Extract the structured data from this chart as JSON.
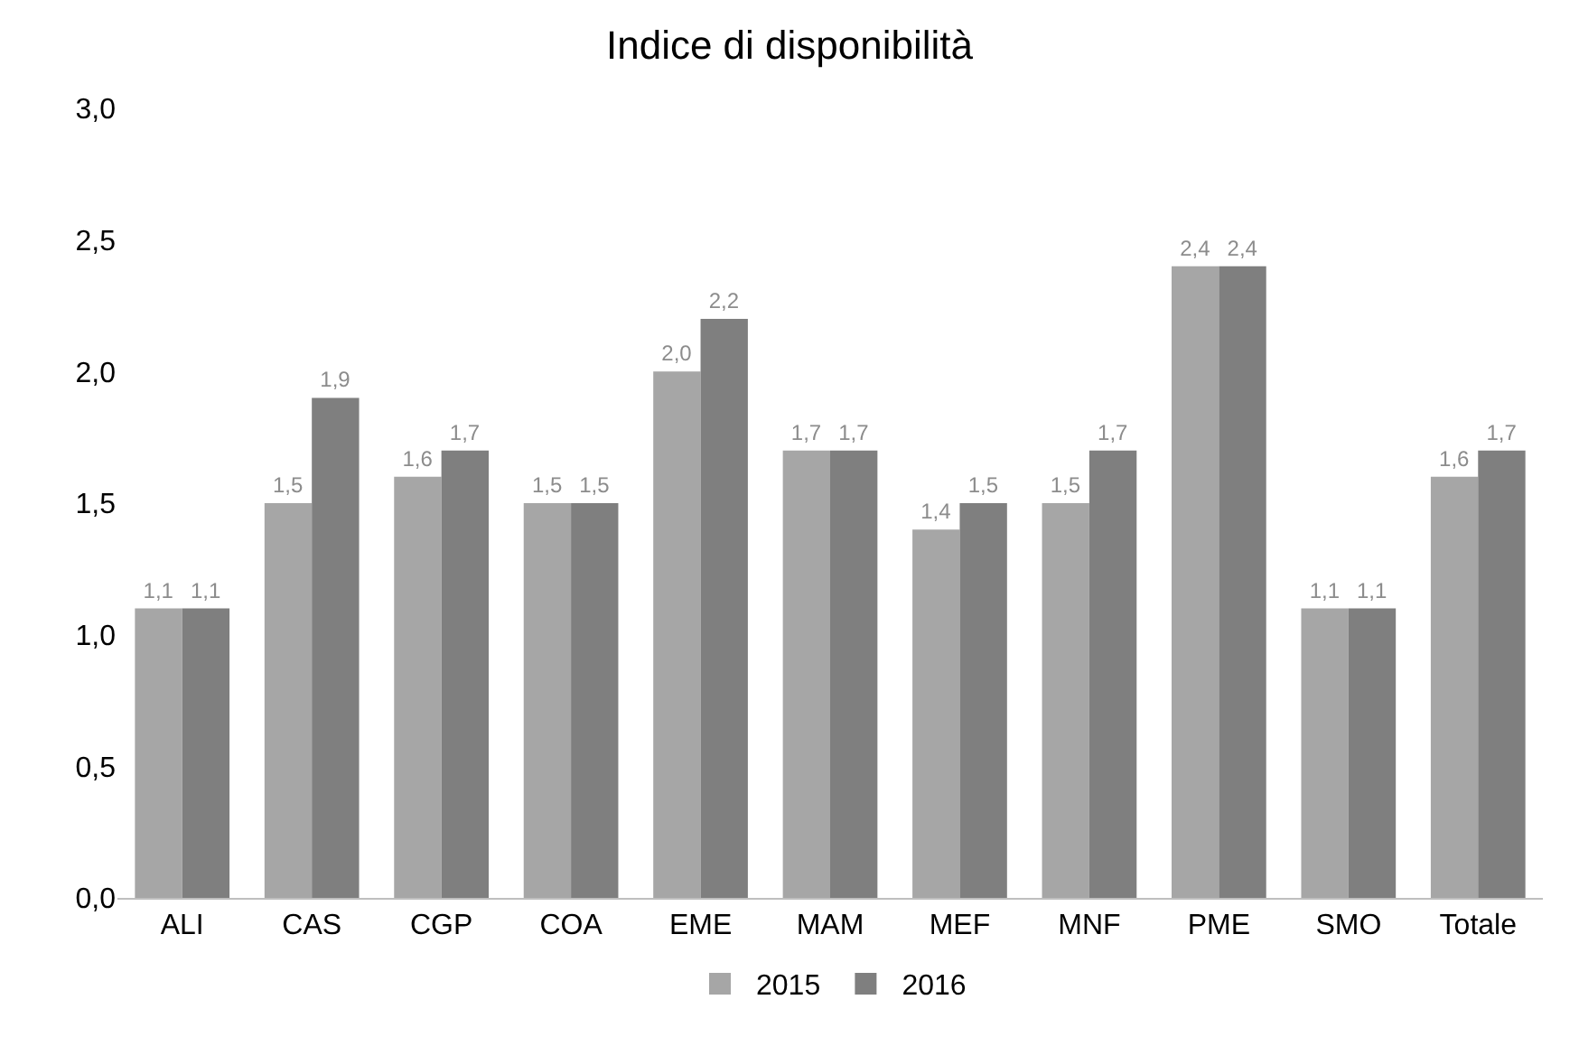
{
  "chart_data": {
    "type": "bar",
    "title": "Indice di disponibilità",
    "categories": [
      "ALI",
      "CAS",
      "CGP",
      "COA",
      "EME",
      "MAM",
      "MEF",
      "MNF",
      "PME",
      "SMO",
      "Totale"
    ],
    "series": [
      {
        "name": "2015",
        "color": "#a6a6a6",
        "values": [
          1.1,
          1.5,
          1.6,
          1.5,
          2.0,
          1.7,
          1.4,
          1.5,
          2.4,
          1.1,
          1.6
        ],
        "value_labels": [
          "1,1",
          "1,5",
          "1,6",
          "1,5",
          "2,0",
          "1,7",
          "1,4",
          "1,5",
          "2,4",
          "1,1",
          "1,6"
        ]
      },
      {
        "name": "2016",
        "color": "#7f7f7f",
        "values": [
          1.1,
          1.9,
          1.7,
          1.5,
          2.2,
          1.7,
          1.5,
          1.7,
          2.4,
          1.1,
          1.7
        ],
        "value_labels": [
          "1,1",
          "1,9",
          "1,7",
          "1,5",
          "2,2",
          "1,7",
          "1,5",
          "1,7",
          "2,4",
          "1,1",
          "1,7"
        ]
      }
    ],
    "ylim": [
      0,
      3.0
    ],
    "yticks": [
      {
        "value": 0,
        "label": "0,0"
      },
      {
        "value": 0.5,
        "label": "0,5"
      },
      {
        "value": 1.0,
        "label": "1,0"
      },
      {
        "value": 1.5,
        "label": "1,5"
      },
      {
        "value": 2.0,
        "label": "2,0"
      },
      {
        "value": 2.5,
        "label": "2,5"
      },
      {
        "value": 3.0,
        "label": "3,0"
      }
    ],
    "grid": false,
    "legend": "bottom"
  }
}
